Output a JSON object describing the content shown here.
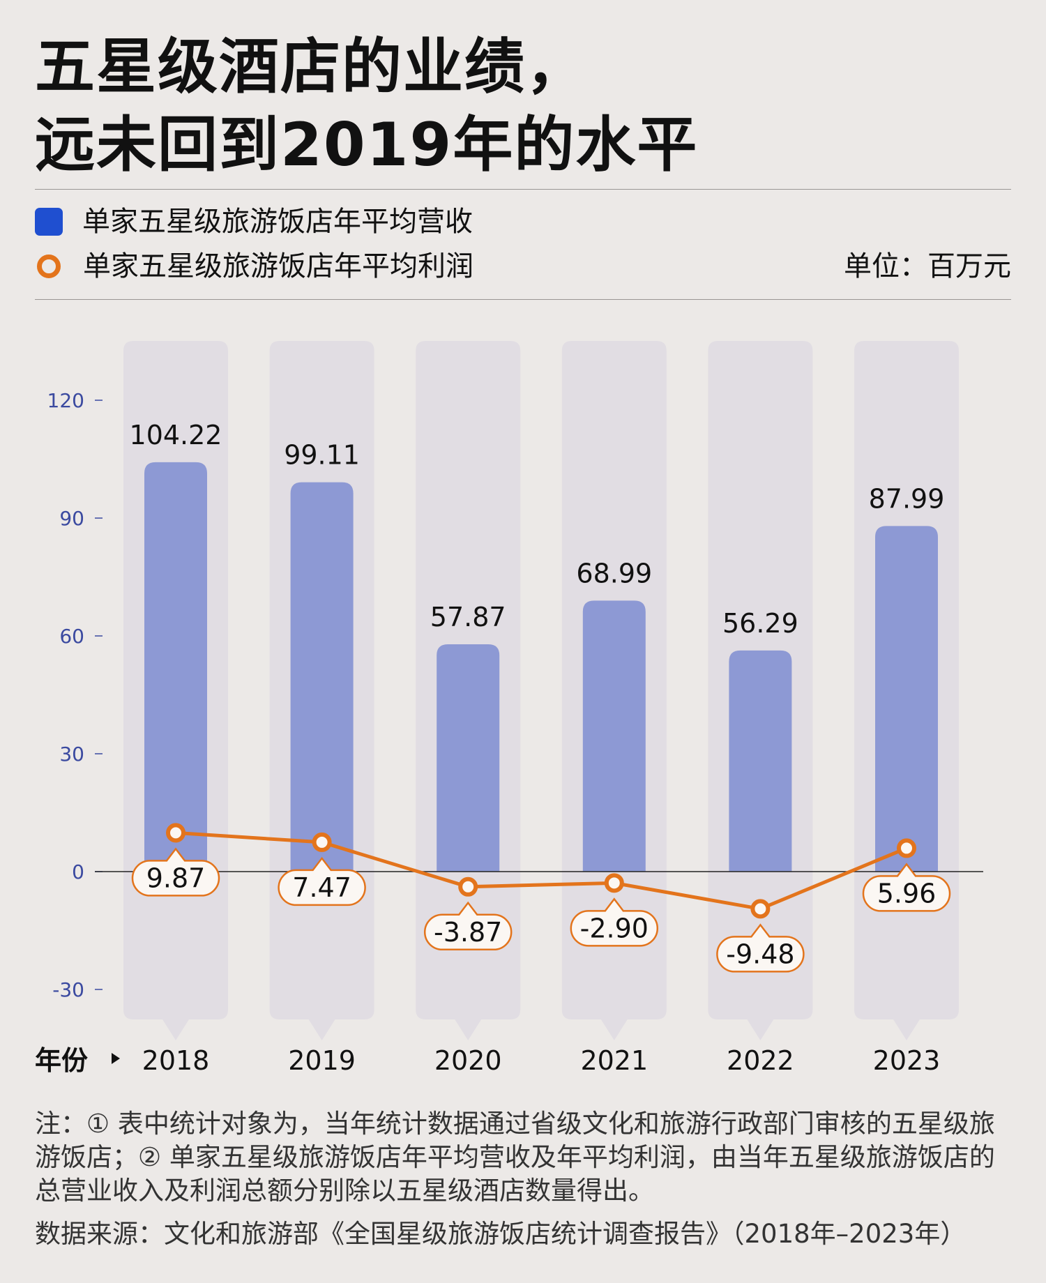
{
  "title": {
    "line1": "五星级酒店的业绩，",
    "line2": "远未回到2019年的水平"
  },
  "legend": {
    "revenue": "单家五星级旅游饭店年平均营收",
    "profit": "单家五星级旅游饭店年平均利润"
  },
  "unit": "单位：百万元",
  "x_axis_label": "年份",
  "colors": {
    "bar": "#8d99d4",
    "bar_legend": "#1f4fd0",
    "line": "#e3741c",
    "column_bg": "#e1dde3",
    "axis_tick": "#3b4aa0"
  },
  "chart_data": {
    "type": "bar",
    "categories": [
      "2018",
      "2019",
      "2020",
      "2021",
      "2022",
      "2023"
    ],
    "series": [
      {
        "name": "单家五星级旅游饭店年平均营收",
        "type": "bar",
        "values": [
          104.22,
          99.11,
          57.87,
          68.99,
          56.29,
          87.99
        ],
        "labels": [
          "104.22",
          "99.11",
          "57.87",
          "68.99",
          "56.29",
          "87.99"
        ]
      },
      {
        "name": "单家五星级旅游饭店年平均利润",
        "type": "line",
        "values": [
          9.87,
          7.47,
          -3.87,
          -2.9,
          -9.48,
          5.96
        ],
        "labels": [
          "9.87",
          "7.47",
          "-3.87",
          "-2.90",
          "-9.48",
          "5.96"
        ]
      }
    ],
    "yticks": [
      "120",
      "90",
      "60",
      "30",
      "0",
      "-30"
    ],
    "ylim": [
      -30,
      120
    ],
    "unit": "百万元"
  },
  "note": "注：① 表中统计对象为，当年统计数据通过省级文化和旅游行政部门审核的五星级旅游饭店；② 单家五星级旅游饭店年平均营收及年平均利润，由当年五星级旅游饭店的总营业收入及利润总额分别除以五星级酒店数量得出。",
  "source": "数据来源：文化和旅游部《全国星级旅游饭店统计调查报告》（2018年–2023年）"
}
